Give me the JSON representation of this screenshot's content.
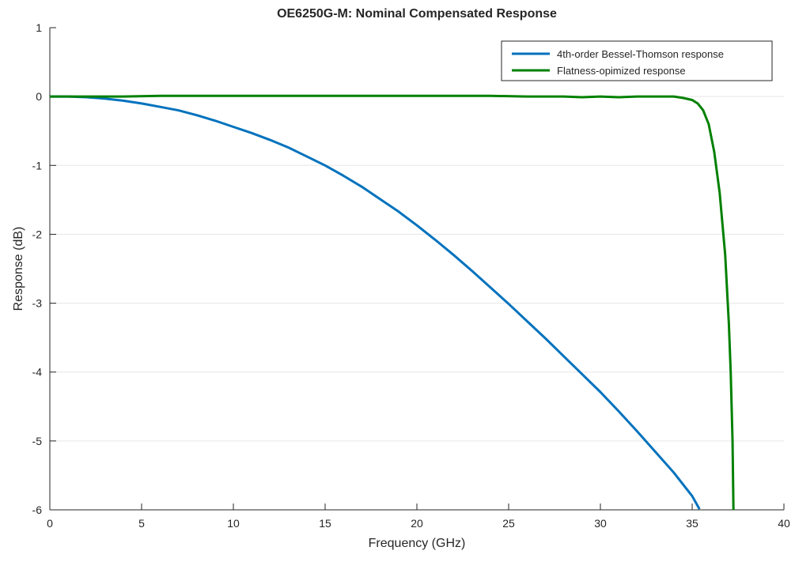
{
  "chart_data": {
    "type": "line",
    "title": "OE6250G-M: Nominal Compensated Response",
    "xlabel": "Frequency (GHz)",
    "ylabel": "Response (dB)",
    "xlim": [
      0,
      40
    ],
    "ylim": [
      -6,
      1
    ],
    "xticks": [
      "0",
      "5",
      "10",
      "15",
      "20",
      "25",
      "30",
      "35",
      "40"
    ],
    "yticks": [
      "1",
      "0",
      "-1",
      "-2",
      "-3",
      "-4",
      "-5",
      "-6"
    ],
    "grid": "horizontal",
    "legend_position": "top-right",
    "series": [
      {
        "name": "4th-order Bessel-Thomson response",
        "color": "#0072BD",
        "x": [
          0,
          1,
          2,
          3,
          4,
          5,
          6,
          7,
          8,
          9,
          10,
          11,
          12,
          13,
          14,
          15,
          16,
          17,
          18,
          19,
          20,
          21,
          22,
          23,
          24,
          25,
          26,
          27,
          28,
          29,
          30,
          31,
          32,
          33,
          34,
          35,
          35.4
        ],
        "y": [
          0,
          0,
          -0.01,
          -0.03,
          -0.06,
          -0.1,
          -0.15,
          -0.2,
          -0.27,
          -0.35,
          -0.44,
          -0.53,
          -0.63,
          -0.74,
          -0.87,
          -1.0,
          -1.15,
          -1.31,
          -1.49,
          -1.67,
          -1.87,
          -2.08,
          -2.3,
          -2.53,
          -2.77,
          -3.01,
          -3.26,
          -3.51,
          -3.77,
          -4.03,
          -4.29,
          -4.57,
          -4.86,
          -5.16,
          -5.46,
          -5.8,
          -5.99
        ]
      },
      {
        "name": "Flatness-opimized response",
        "color": "#008000",
        "x": [
          0,
          2,
          4,
          6,
          8,
          10,
          12,
          14,
          16,
          18,
          20,
          22,
          24,
          26,
          28,
          29,
          30,
          31,
          32,
          33,
          34,
          34.5,
          35,
          35.3,
          35.6,
          35.9,
          36.2,
          36.5,
          36.8,
          37.0,
          37.1,
          37.2,
          37.25
        ],
        "y": [
          0,
          0,
          0,
          0.01,
          0.01,
          0.01,
          0.01,
          0.01,
          0.01,
          0.01,
          0.01,
          0.01,
          0.01,
          0.0,
          0.0,
          -0.01,
          0.0,
          -0.01,
          0.0,
          0.0,
          0.0,
          -0.02,
          -0.05,
          -0.1,
          -0.2,
          -0.4,
          -0.8,
          -1.4,
          -2.3,
          -3.3,
          -4.0,
          -5.0,
          -6.0
        ]
      }
    ]
  }
}
